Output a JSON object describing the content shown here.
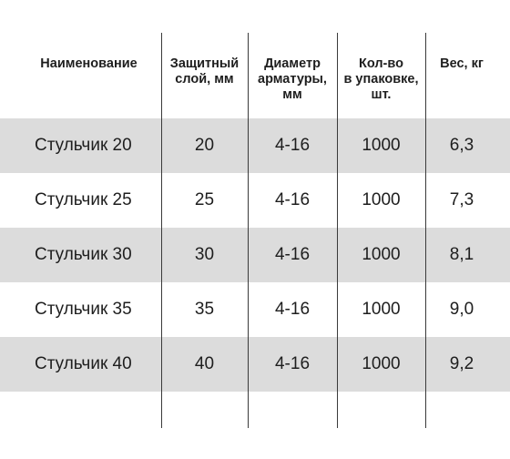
{
  "table": {
    "headers": [
      "Наименование",
      "Защитный\nслой, мм",
      "Диаметр\nарматуры,\nмм",
      "Кол-во\nв упаковке,\nшт.",
      "Вес, кг"
    ],
    "rows": [
      [
        "Стульчик 20",
        "20",
        "4-16",
        "1000",
        "6,3"
      ],
      [
        "Стульчик 25",
        "25",
        "4-16",
        "1000",
        "7,3"
      ],
      [
        "Стульчик 30",
        "30",
        "4-16",
        "1000",
        "8,1"
      ],
      [
        "Стульчик 35",
        "35",
        "4-16",
        "1000",
        "9,0"
      ],
      [
        "Стульчик 40",
        "40",
        "4-16",
        "1000",
        "9,2"
      ]
    ]
  },
  "colors": {
    "shade": "#dcdcdc",
    "line": "#3a3a3a",
    "text": "#1e1e1e"
  }
}
